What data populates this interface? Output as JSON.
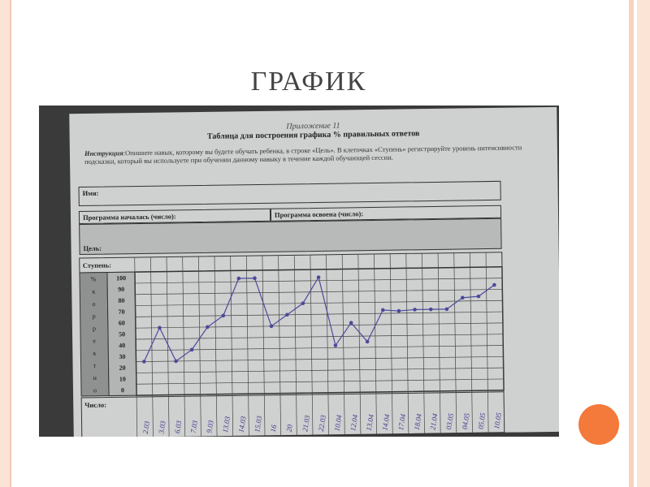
{
  "slide": {
    "title": "ГРАФИК",
    "accent_color": "#f37a3a"
  },
  "document": {
    "appendix": "Приложение 11",
    "heading": "Таблица для построения графика % правильных ответов",
    "instruction_label": "Инструкция",
    "instruction_text": ":Опишите навык, которому вы будете обучать ребенка, в строке «Цель». В клеточках «Ступень» регистрируйте уровень интенсивности подсказки, который вы используете при обучении данному навыку в течение каждой обучающей сессии.",
    "name_label": "Имя:",
    "start_label": "Программа началась (число):",
    "mastered_label": "Программа освоена (число):",
    "goal_label": "Цель:",
    "step_label": "Ступень:",
    "date_label": "Число:",
    "side_label": [
      "%",
      "к",
      "о",
      "р",
      "р",
      "е",
      "к",
      "т",
      "н",
      "о"
    ]
  },
  "chart_data": {
    "type": "line",
    "ylabel": "% корректно",
    "yticks": [
      100,
      90,
      80,
      70,
      60,
      50,
      40,
      30,
      20,
      10,
      0
    ],
    "ylim": [
      0,
      100
    ],
    "grid": true,
    "line_color": "#4a4a9a",
    "x": [
      "2.03",
      "3.03",
      "6.03",
      "7.03",
      "9.03",
      "13.03",
      "14.03",
      "15.03",
      "16",
      "20",
      "21.03",
      "22.03",
      "10.04",
      "12.04",
      "13.04",
      "14.04",
      "17.04",
      "18.04",
      "21.04",
      "03.05",
      "04.05",
      "05.05",
      "10.05"
    ],
    "values": [
      25,
      55,
      25,
      35,
      55,
      65,
      98,
      98,
      55,
      65,
      75,
      98,
      37,
      57,
      40,
      68,
      67,
      68,
      68,
      68,
      78,
      79,
      89
    ]
  }
}
